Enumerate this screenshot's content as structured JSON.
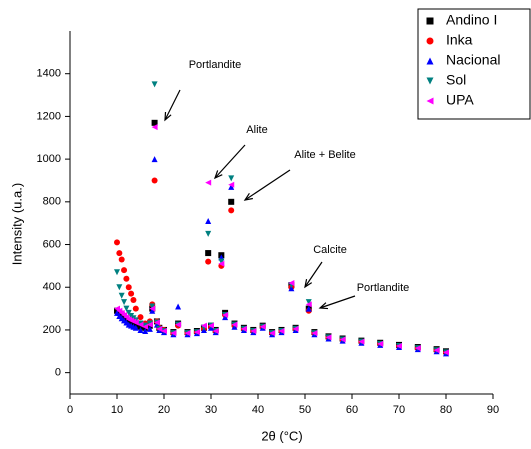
{
  "chart_data": {
    "type": "scatter",
    "xlabel": "2θ (°C)",
    "ylabel": "Intensity (u.a.)",
    "xlim": [
      0,
      90
    ],
    "ylim": [
      -100,
      1600
    ],
    "xticks": [
      0,
      10,
      20,
      30,
      40,
      50,
      60,
      70,
      80,
      90
    ],
    "yticks": [
      0,
      200,
      400,
      600,
      800,
      1000,
      1200,
      1400
    ],
    "legend": "top-right",
    "annotations": [
      "Portlandite",
      "Alite",
      "Alite + Belite",
      "Calcite",
      "Portlandite"
    ],
    "x": [
      10,
      10.5,
      11,
      11.5,
      12,
      12.5,
      13,
      13.5,
      14,
      15,
      16,
      17,
      17.5,
      18,
      18.5,
      19,
      20,
      22,
      23,
      25,
      27,
      28.5,
      29.4,
      30,
      31,
      32.2,
      33,
      34.3,
      35,
      37,
      39,
      41,
      43,
      45,
      47.1,
      48,
      50.8,
      52,
      55,
      58,
      62,
      66,
      70,
      74,
      78,
      80
    ],
    "series": [
      {
        "name": "Andino I",
        "color": "#000000",
        "marker": "square",
        "values": [
          290,
          280,
          270,
          260,
          250,
          240,
          235,
          230,
          225,
          215,
          210,
          220,
          300,
          1170,
          240,
          210,
          200,
          190,
          230,
          190,
          195,
          210,
          560,
          220,
          200,
          550,
          280,
          800,
          230,
          210,
          200,
          220,
          190,
          200,
          410,
          210,
          300,
          190,
          170,
          160,
          150,
          140,
          130,
          120,
          110,
          100
        ]
      },
      {
        "name": "Inka",
        "color": "#ff0000",
        "marker": "circle",
        "values": [
          610,
          560,
          530,
          480,
          440,
          400,
          370,
          340,
          300,
          260,
          230,
          240,
          320,
          900,
          240,
          210,
          200,
          185,
          220,
          185,
          190,
          205,
          520,
          215,
          195,
          500,
          270,
          760,
          220,
          205,
          195,
          215,
          185,
          195,
          400,
          205,
          290,
          185,
          165,
          155,
          145,
          135,
          125,
          115,
          105,
          95
        ]
      },
      {
        "name": "Nacional",
        "color": "#0000ff",
        "marker": "triangle-up",
        "values": [
          280,
          265,
          255,
          245,
          235,
          225,
          220,
          215,
          210,
          200,
          195,
          205,
          290,
          1000,
          225,
          200,
          190,
          180,
          310,
          180,
          185,
          200,
          710,
          210,
          190,
          540,
          260,
          870,
          215,
          200,
          190,
          210,
          180,
          190,
          395,
          200,
          300,
          180,
          160,
          150,
          140,
          130,
          120,
          110,
          100,
          90
        ]
      },
      {
        "name": "Sol",
        "color": "#008080",
        "marker": "triangle-down",
        "values": [
          470,
          400,
          360,
          330,
          300,
          280,
          265,
          255,
          245,
          230,
          220,
          230,
          310,
          1350,
          235,
          205,
          195,
          185,
          225,
          185,
          190,
          210,
          650,
          220,
          195,
          520,
          270,
          910,
          225,
          205,
          195,
          215,
          185,
          195,
          410,
          205,
          330,
          185,
          165,
          155,
          145,
          135,
          125,
          115,
          105,
          95
        ]
      },
      {
        "name": "UPA",
        "color": "#ff00ff",
        "marker": "triangle-left",
        "values": [
          300,
          290,
          280,
          270,
          260,
          250,
          245,
          240,
          235,
          225,
          215,
          225,
          300,
          1150,
          235,
          205,
          195,
          185,
          225,
          185,
          190,
          220,
          890,
          220,
          195,
          510,
          270,
          880,
          225,
          205,
          195,
          215,
          185,
          195,
          420,
          205,
          320,
          185,
          165,
          155,
          145,
          135,
          125,
          115,
          105,
          95
        ]
      }
    ]
  }
}
